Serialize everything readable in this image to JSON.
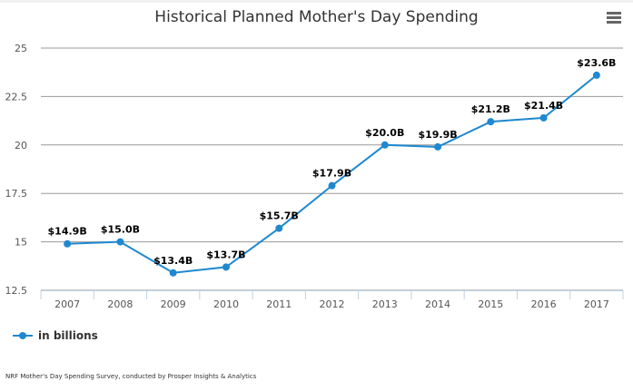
{
  "chart_data": {
    "type": "line",
    "title": "Historical Planned Mother's Day Spending",
    "categories": [
      "2007",
      "2008",
      "2009",
      "2010",
      "2011",
      "2012",
      "2013",
      "2014",
      "2015",
      "2016",
      "2017"
    ],
    "series": [
      {
        "name": "in billions",
        "values": [
          14.9,
          15.0,
          13.4,
          13.7,
          15.7,
          17.9,
          20.0,
          19.9,
          21.2,
          21.4,
          23.6
        ],
        "labels": [
          "$14.9B",
          "$15.0B",
          "$13.4B",
          "$13.7B",
          "$15.7B",
          "$17.9B",
          "$20.0B",
          "$19.9B",
          "$21.2B",
          "$21.4B",
          "$23.6B"
        ]
      }
    ],
    "yticks": [
      "12.5",
      "15",
      "17.5",
      "20",
      "22.5",
      "25"
    ],
    "ylim": [
      12.5,
      25
    ],
    "grid": true,
    "legend": "bottom-left",
    "color": "#1f88d0"
  },
  "credit": "NRF Mother's Day Spending Survey, conducted by Prosper Insights & Analytics",
  "menu_icon": "hamburger-icon"
}
